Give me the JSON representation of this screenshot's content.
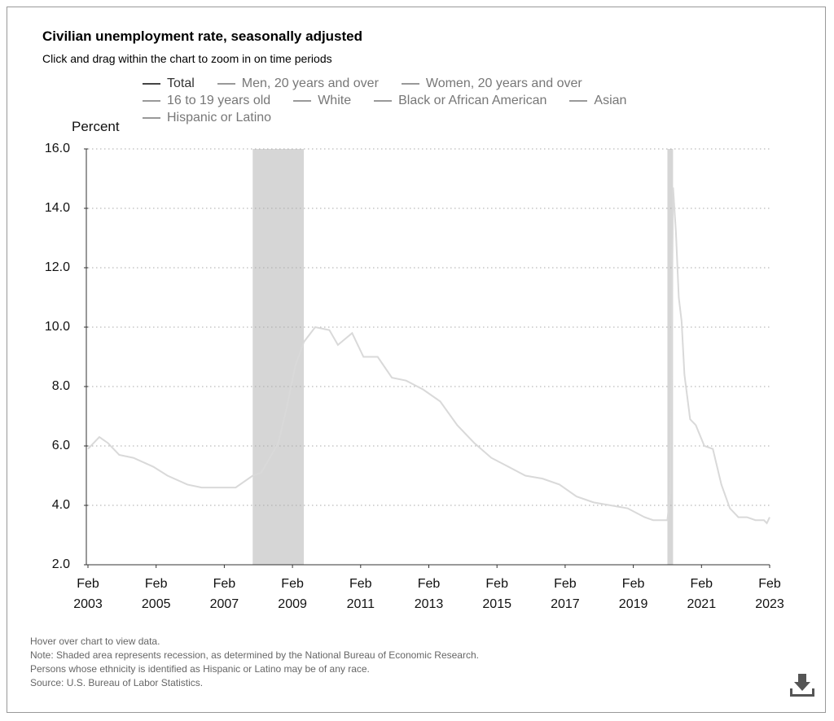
{
  "chart_data": {
    "type": "line",
    "title": "Civilian unemployment rate, seasonally adjusted",
    "subtitle": "Click and drag within the chart to zoom in on time periods",
    "y_label": "Percent",
    "x": [
      "2003-02",
      "2003-06",
      "2003-09",
      "2004-01",
      "2004-06",
      "2005-01",
      "2005-06",
      "2006-01",
      "2006-06",
      "2007-01",
      "2007-06",
      "2007-12",
      "2008-03",
      "2008-06",
      "2008-09",
      "2008-12",
      "2009-03",
      "2009-06",
      "2009-10",
      "2010-03",
      "2010-06",
      "2010-11",
      "2011-03",
      "2011-08",
      "2012-01",
      "2012-06",
      "2012-12",
      "2013-06",
      "2013-12",
      "2014-06",
      "2014-12",
      "2015-06",
      "2015-12",
      "2016-06",
      "2016-12",
      "2017-06",
      "2017-12",
      "2018-06",
      "2018-12",
      "2019-06",
      "2019-09",
      "2020-02",
      "2020-03",
      "2020-04",
      "2020-05",
      "2020-06",
      "2020-07",
      "2020-08",
      "2020-10",
      "2020-12",
      "2021-03",
      "2021-06",
      "2021-09",
      "2021-12",
      "2022-03",
      "2022-06",
      "2022-09",
      "2022-12",
      "2023-01",
      "2023-02"
    ],
    "series": [
      {
        "name": "Total",
        "color": "#d9d9d9",
        "values": [
          5.9,
          6.3,
          6.1,
          5.7,
          5.6,
          5.3,
          5.0,
          4.7,
          4.6,
          4.6,
          4.6,
          5.0,
          5.1,
          5.6,
          6.1,
          7.3,
          8.7,
          9.5,
          10.0,
          9.9,
          9.4,
          9.8,
          9.0,
          9.0,
          8.3,
          8.2,
          7.9,
          7.5,
          6.7,
          6.1,
          5.6,
          5.3,
          5.0,
          4.9,
          4.7,
          4.3,
          4.1,
          4.0,
          3.9,
          3.6,
          3.5,
          3.5,
          4.4,
          14.7,
          13.2,
          11.0,
          10.2,
          8.4,
          6.9,
          6.7,
          6.0,
          5.9,
          4.7,
          3.9,
          3.6,
          3.6,
          3.5,
          3.5,
          3.4,
          3.6
        ]
      }
    ],
    "other_legend_entries": [
      "Men, 20 years and over",
      "Women, 20 years and over",
      "16 to 19 years old",
      "White",
      "Black or African American",
      "Asian",
      "Hispanic or Latino"
    ],
    "recessions": [
      {
        "start": "2007-12",
        "end": "2009-06"
      },
      {
        "start": "2020-02",
        "end": "2020-04"
      }
    ],
    "recession_color": "#d6d6d6",
    "xlim": [
      "2003-02",
      "2023-02"
    ],
    "xticks": [
      {
        "value": "2003-02",
        "label": "Feb 2003"
      },
      {
        "value": "2005-02",
        "label": "Feb 2005"
      },
      {
        "value": "2007-02",
        "label": "Feb 2007"
      },
      {
        "value": "2009-02",
        "label": "Feb 2009"
      },
      {
        "value": "2011-02",
        "label": "Feb 2011"
      },
      {
        "value": "2013-02",
        "label": "Feb 2013"
      },
      {
        "value": "2015-02",
        "label": "Feb 2015"
      },
      {
        "value": "2017-02",
        "label": "Feb 2017"
      },
      {
        "value": "2019-02",
        "label": "Feb 2019"
      },
      {
        "value": "2021-02",
        "label": "Feb 2021"
      },
      {
        "value": "2023-02",
        "label": "Feb 2023"
      }
    ],
    "ylim": [
      2,
      16
    ],
    "yticks": [
      {
        "value": 2,
        "label": "2.0"
      },
      {
        "value": 4,
        "label": "4.0"
      },
      {
        "value": 6,
        "label": "6.0"
      },
      {
        "value": 8,
        "label": "8.0"
      },
      {
        "value": 10,
        "label": "10.0"
      },
      {
        "value": 12,
        "label": "12.0"
      },
      {
        "value": 14,
        "label": "14.0"
      },
      {
        "value": 16,
        "label": "16.0"
      }
    ],
    "grid": true,
    "notes": [
      "Hover over chart to view data.",
      "Note: Shaded area represents recession, as determined by the National Bureau of Economic Research.",
      "Persons whose ethnicity is identified as Hispanic or Latino may be of any race.",
      "Source: U.S. Bureau of Labor Statistics."
    ]
  }
}
